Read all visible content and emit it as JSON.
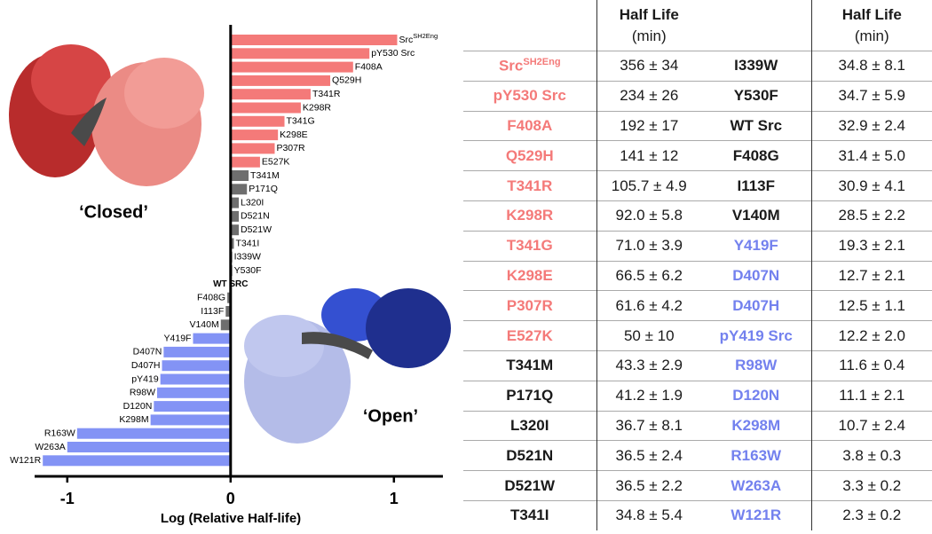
{
  "chart_data": {
    "type": "bar",
    "orientation": "horizontal",
    "x_label": "Log (Relative Half-life)",
    "categories": [
      "Src",
      "pY530 Src",
      "F408A",
      "Q529H",
      "T341R",
      "K298R",
      "T341G",
      "K298E",
      "P307R",
      "E527K",
      "T341M",
      "P171Q",
      "L320I",
      "D521N",
      "D521W",
      "T341I",
      "I339W",
      "Y530F",
      "WT SRC",
      "F408G",
      "I113F",
      "V140M",
      "Y419F",
      "D407N",
      "D407H",
      "pY419",
      "R98W",
      "D120N",
      "K298M",
      "R163W",
      "W263A",
      "W121R"
    ],
    "category_superscripts": {
      "0": "SH2Eng"
    },
    "values": [
      1.02,
      0.85,
      0.75,
      0.61,
      0.49,
      0.43,
      0.33,
      0.29,
      0.27,
      0.18,
      0.11,
      0.1,
      0.05,
      0.05,
      0.05,
      0.02,
      0.01,
      0.01,
      0,
      -0.02,
      -0.03,
      -0.06,
      -0.23,
      -0.41,
      -0.42,
      -0.43,
      -0.45,
      -0.47,
      -0.49,
      -0.94,
      -1.0,
      -1.15
    ],
    "colors": [
      "#f47a79",
      "#f47a79",
      "#f47a79",
      "#f47a79",
      "#f47a79",
      "#f47a79",
      "#f47a79",
      "#f47a79",
      "#f47a79",
      "#f47a79",
      "#6e6e6e",
      "#6e6e6e",
      "#6e6e6e",
      "#6e6e6e",
      "#6e6e6e",
      "#6e6e6e",
      "#6e6e6e",
      "#6e6e6e",
      "#6e6e6e",
      "#6e6e6e",
      "#6e6e6e",
      "#6e6e6e",
      "#8393f5",
      "#8393f5",
      "#8393f5",
      "#8393f5",
      "#8393f5",
      "#8393f5",
      "#8393f5",
      "#8393f5",
      "#8393f5",
      "#8393f5"
    ],
    "xlim": [
      -1.2,
      1.3
    ],
    "xticks": [
      -1,
      0,
      1
    ],
    "annotations": [
      "‘Closed’",
      "‘Open’"
    ]
  },
  "table": {
    "header": [
      "Half Life",
      "(min)",
      "Half Life",
      "(min)"
    ],
    "rows": [
      [
        {
          "text": "Src",
          "sup": "SH2Eng"
        },
        "356 ± 34",
        "I339W",
        "34.8 ± 8.1"
      ],
      [
        "pY530 Src",
        "234 ± 26",
        "Y530F",
        "34.7 ± 5.9"
      ],
      [
        "F408A",
        "192 ± 17",
        "WT Src",
        "32.9 ± 2.4"
      ],
      [
        "Q529H",
        "141 ± 12",
        "F408G",
        "31.4 ± 5.0"
      ],
      [
        "T341R",
        "105.7 ± 4.9",
        "I113F",
        "30.9 ± 4.1"
      ],
      [
        "K298R",
        "92.0 ± 5.8",
        "V140M",
        "28.5 ± 2.2"
      ],
      [
        "T341G",
        "71.0 ± 3.9",
        "Y419F",
        "19.3 ± 2.1"
      ],
      [
        "K298E",
        "66.5 ± 6.2",
        "D407N",
        "12.7 ± 2.1"
      ],
      [
        "P307R",
        "61.6 ± 4.2",
        "D407H",
        "12.5 ± 1.1"
      ],
      [
        "E527K",
        "50 ± 10",
        "pY419 Src",
        "12.2 ± 2.0"
      ],
      [
        "T341M",
        "43.3 ± 2.9",
        "R98W",
        "11.6 ± 0.4"
      ],
      [
        "P171Q",
        "41.2 ± 1.9",
        "D120N",
        "11.1 ± 2.1"
      ],
      [
        "L320I",
        "36.7 ± 8.1",
        "K298M",
        "10.7 ± 2.4"
      ],
      [
        "D521N",
        "36.5 ± 2.4",
        "R163W",
        "3.8 ± 0.3"
      ],
      [
        "D521W",
        "36.5 ± 2.2",
        "W263A",
        "3.3 ± 0.2"
      ],
      [
        "T341I",
        "34.8 ± 5.4",
        "W121R",
        "2.3 ± 0.2"
      ]
    ],
    "name_colors": [
      [
        "#f47a79",
        "#1a1a1a"
      ],
      [
        "#f47a79",
        "#1a1a1a"
      ],
      [
        "#f47a79",
        "#1a1a1a"
      ],
      [
        "#f47a79",
        "#1a1a1a"
      ],
      [
        "#f47a79",
        "#1a1a1a"
      ],
      [
        "#f47a79",
        "#1a1a1a"
      ],
      [
        "#f47a79",
        "#7381ee"
      ],
      [
        "#f47a79",
        "#7381ee"
      ],
      [
        "#f47a79",
        "#7381ee"
      ],
      [
        "#f47a79",
        "#7381ee"
      ],
      [
        "#1a1a1a",
        "#7381ee"
      ],
      [
        "#1a1a1a",
        "#7381ee"
      ],
      [
        "#1a1a1a",
        "#7381ee"
      ],
      [
        "#1a1a1a",
        "#7381ee"
      ],
      [
        "#1a1a1a",
        "#7381ee"
      ],
      [
        "#1a1a1a",
        "#7381ee"
      ]
    ]
  }
}
